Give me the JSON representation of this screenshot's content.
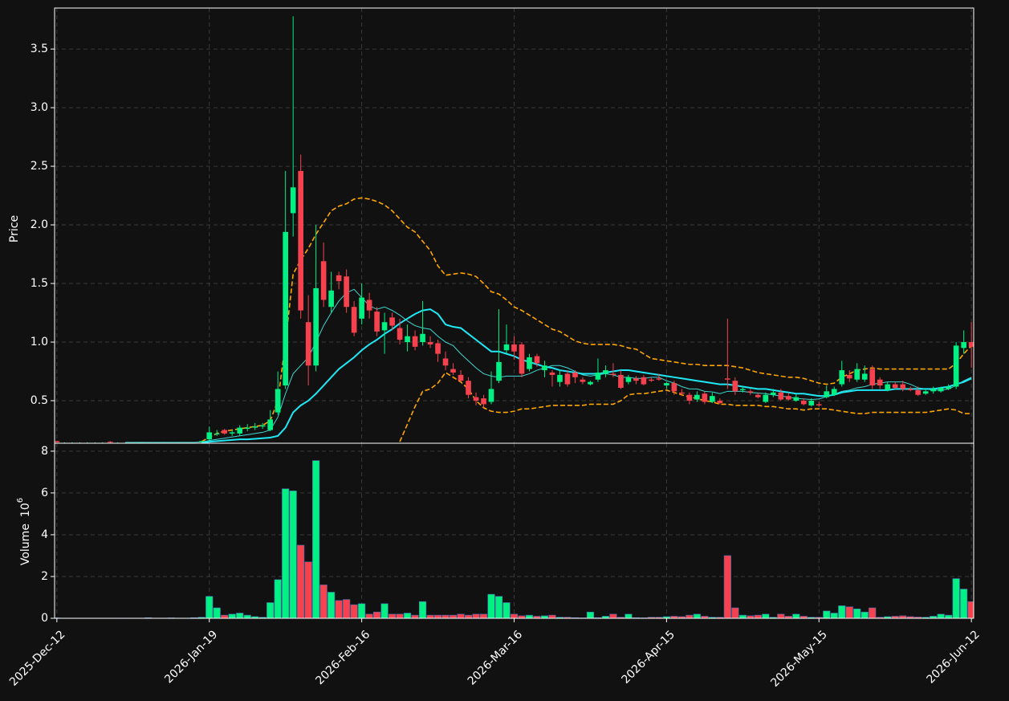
{
  "chart_data": {
    "type": "candlestick",
    "ylabel": "Price",
    "categories": [
      "2025-Dec-12",
      null,
      null,
      null,
      null,
      null,
      null,
      null,
      null,
      null,
      null,
      null,
      null,
      null,
      null,
      null,
      null,
      null,
      null,
      null,
      "2026-Jan-19",
      null,
      null,
      null,
      null,
      null,
      null,
      null,
      null,
      null,
      null,
      null,
      null,
      null,
      null,
      null,
      null,
      null,
      null,
      null,
      "2026-Feb-16",
      null,
      null,
      null,
      null,
      null,
      null,
      null,
      null,
      null,
      null,
      null,
      null,
      null,
      null,
      null,
      null,
      null,
      null,
      null,
      "2026-Mar-16",
      null,
      null,
      null,
      null,
      null,
      null,
      null,
      null,
      null,
      null,
      null,
      null,
      null,
      null,
      null,
      null,
      null,
      null,
      null,
      "2026-Apr-15",
      null,
      null,
      null,
      null,
      null,
      null,
      null,
      null,
      null,
      null,
      null,
      null,
      null,
      null,
      null,
      null,
      null,
      null,
      null,
      "2026-May-15",
      null,
      null,
      null,
      null,
      null,
      null,
      null,
      null,
      null,
      null,
      null,
      null,
      null,
      null,
      null,
      null,
      null,
      null,
      null,
      "2026-Jun-12"
    ],
    "open": [
      0.155,
      0.14,
      0.14,
      0.14,
      0.14,
      0.14,
      0.14,
      0.15,
      0.14,
      0.14,
      0.14,
      0.14,
      0.14,
      0.14,
      0.14,
      0.14,
      0.14,
      0.14,
      0.14,
      0.15,
      0.17,
      0.22,
      0.25,
      0.22,
      0.22,
      0.26,
      0.27,
      0.28,
      0.25,
      0.4,
      0.63,
      2.1,
      2.46,
      1.17,
      0.8,
      1.69,
      1.3,
      1.57,
      1.56,
      1.3,
      1.2,
      1.36,
      1.26,
      1.1,
      1.21,
      1.12,
      1.0,
      1.05,
      1.0,
      1.0,
      0.99,
      0.86,
      0.77,
      0.72,
      0.67,
      0.53,
      0.52,
      0.49,
      0.67,
      0.93,
      0.98,
      0.98,
      0.77,
      0.88,
      0.76,
      0.74,
      0.66,
      0.73,
      0.74,
      0.68,
      0.64,
      0.68,
      0.73,
      0.73,
      0.72,
      0.66,
      0.69,
      0.7,
      0.68,
      0.69,
      0.63,
      0.65,
      0.57,
      0.55,
      0.51,
      0.56,
      0.49,
      0.5,
      0.69,
      0.67,
      0.59,
      0.58,
      0.55,
      0.49,
      0.55,
      0.57,
      0.54,
      0.5,
      0.5,
      0.46,
      0.47,
      0.53,
      0.55,
      0.64,
      0.72,
      0.68,
      0.68,
      0.77,
      0.68,
      0.59,
      0.64,
      0.64,
      0.6,
      0.59,
      0.56,
      0.58,
      0.58,
      0.6,
      0.62,
      0.95,
      1.0
    ],
    "high": [
      0.16,
      0.145,
      0.145,
      0.145,
      0.145,
      0.145,
      0.145,
      0.155,
      0.145,
      0.145,
      0.145,
      0.145,
      0.145,
      0.145,
      0.145,
      0.145,
      0.145,
      0.145,
      0.145,
      0.16,
      0.28,
      0.25,
      0.26,
      0.25,
      0.29,
      0.3,
      0.31,
      0.31,
      0.42,
      0.75,
      2.46,
      3.78,
      2.6,
      1.4,
      2.0,
      1.85,
      1.6,
      1.6,
      1.62,
      1.35,
      1.5,
      1.42,
      1.3,
      1.25,
      1.25,
      1.2,
      1.15,
      1.1,
      1.35,
      1.05,
      1.02,
      0.92,
      0.82,
      0.76,
      0.7,
      0.57,
      0.55,
      0.75,
      1.28,
      1.15,
      1.05,
      1.0,
      0.9,
      0.9,
      0.84,
      0.76,
      0.76,
      0.76,
      0.76,
      0.7,
      0.67,
      0.86,
      0.8,
      0.82,
      0.76,
      0.72,
      0.71,
      0.72,
      0.7,
      0.73,
      0.66,
      0.67,
      0.6,
      0.57,
      0.58,
      0.58,
      0.57,
      0.52,
      1.2,
      0.7,
      0.62,
      0.6,
      0.57,
      0.57,
      0.6,
      0.6,
      0.57,
      0.56,
      0.52,
      0.52,
      0.49,
      0.63,
      0.62,
      0.84,
      0.76,
      0.82,
      0.8,
      0.8,
      0.7,
      0.66,
      0.66,
      0.67,
      0.62,
      0.62,
      0.6,
      0.62,
      0.62,
      0.64,
      1.0,
      1.1,
      1.17
    ],
    "low": [
      0.145,
      0.135,
      0.138,
      0.138,
      0.138,
      0.138,
      0.138,
      0.14,
      0.138,
      0.138,
      0.138,
      0.135,
      0.138,
      0.138,
      0.138,
      0.138,
      0.138,
      0.138,
      0.138,
      0.14,
      0.16,
      0.2,
      0.21,
      0.2,
      0.2,
      0.24,
      0.25,
      0.26,
      0.24,
      0.38,
      0.6,
      1.9,
      1.2,
      0.63,
      0.75,
      1.3,
      1.25,
      1.45,
      1.25,
      1.05,
      1.15,
      1.2,
      1.05,
      0.9,
      1.1,
      0.98,
      0.92,
      0.93,
      0.97,
      0.95,
      0.83,
      0.76,
      0.72,
      0.66,
      0.52,
      0.46,
      0.44,
      0.47,
      0.65,
      0.9,
      0.85,
      0.7,
      0.75,
      0.79,
      0.7,
      0.62,
      0.62,
      0.62,
      0.65,
      0.64,
      0.63,
      0.66,
      0.7,
      0.7,
      0.6,
      0.64,
      0.64,
      0.63,
      0.66,
      0.67,
      0.6,
      0.55,
      0.54,
      0.47,
      0.49,
      0.47,
      0.48,
      0.47,
      0.6,
      0.55,
      0.57,
      0.55,
      0.52,
      0.48,
      0.53,
      0.5,
      0.5,
      0.49,
      0.46,
      0.45,
      0.45,
      0.52,
      0.54,
      0.62,
      0.66,
      0.66,
      0.66,
      0.6,
      0.6,
      0.58,
      0.6,
      0.58,
      0.58,
      0.54,
      0.55,
      0.56,
      0.57,
      0.59,
      0.6,
      0.9,
      0.78
    ],
    "close": [
      0.145,
      0.14,
      0.14,
      0.14,
      0.14,
      0.14,
      0.14,
      0.145,
      0.14,
      0.14,
      0.14,
      0.142,
      0.14,
      0.14,
      0.14,
      0.14,
      0.14,
      0.14,
      0.14,
      0.155,
      0.23,
      0.22,
      0.22,
      0.23,
      0.27,
      0.27,
      0.28,
      0.29,
      0.34,
      0.6,
      1.94,
      2.32,
      1.27,
      0.8,
      1.46,
      1.36,
      1.44,
      1.52,
      1.3,
      1.08,
      1.38,
      1.27,
      1.09,
      1.17,
      1.14,
      1.02,
      1.05,
      0.96,
      1.07,
      0.98,
      0.9,
      0.8,
      0.74,
      0.67,
      0.55,
      0.5,
      0.47,
      0.6,
      0.83,
      0.98,
      0.92,
      0.73,
      0.87,
      0.82,
      0.8,
      0.72,
      0.72,
      0.64,
      0.7,
      0.66,
      0.66,
      0.74,
      0.76,
      0.72,
      0.61,
      0.7,
      0.67,
      0.64,
      0.67,
      0.68,
      0.65,
      0.58,
      0.56,
      0.5,
      0.55,
      0.49,
      0.54,
      0.48,
      0.68,
      0.58,
      0.6,
      0.57,
      0.53,
      0.55,
      0.57,
      0.51,
      0.51,
      0.53,
      0.47,
      0.5,
      0.46,
      0.58,
      0.6,
      0.76,
      0.69,
      0.77,
      0.73,
      0.63,
      0.63,
      0.64,
      0.61,
      0.6,
      0.59,
      0.55,
      0.58,
      0.6,
      0.61,
      0.62,
      0.97,
      1.0,
      0.96
    ],
    "up_color": "#00f084",
    "down_color": "#f5424e",
    "overlays": [
      {
        "style": "thin",
        "color": "#3fd8d2",
        "values": [
          null,
          null,
          null,
          null,
          null,
          null,
          null,
          null,
          null,
          0.145,
          0.145,
          0.145,
          0.145,
          0.145,
          0.145,
          0.145,
          0.145,
          0.145,
          0.145,
          0.148,
          0.16,
          0.17,
          0.18,
          0.19,
          0.2,
          0.21,
          0.22,
          0.23,
          0.25,
          0.36,
          0.56,
          0.73,
          0.8,
          0.87,
          1.0,
          1.14,
          1.25,
          1.35,
          1.42,
          1.45,
          1.38,
          1.31,
          1.28,
          1.3,
          1.27,
          1.23,
          1.18,
          1.14,
          1.12,
          1.11,
          1.05,
          1.0,
          0.97,
          0.9,
          0.84,
          0.78,
          0.73,
          0.71,
          0.7,
          0.71,
          0.71,
          0.71,
          0.73,
          0.76,
          0.78,
          0.8,
          0.8,
          0.78,
          0.75,
          0.72,
          0.71,
          0.72,
          0.73,
          0.72,
          0.7,
          0.7,
          0.69,
          0.69,
          0.7,
          0.7,
          0.67,
          0.65,
          0.62,
          0.6,
          0.6,
          0.58,
          0.575,
          0.56,
          0.58,
          0.58,
          0.58,
          0.57,
          0.565,
          0.56,
          0.55,
          0.54,
          0.53,
          0.52,
          0.515,
          0.51,
          0.515,
          0.535,
          0.555,
          0.58,
          0.59,
          0.61,
          0.62,
          0.64,
          0.65,
          0.66,
          0.66,
          0.66,
          0.64,
          0.61,
          0.6,
          0.59,
          0.59,
          0.6,
          0.63,
          0.67,
          0.7
        ]
      },
      {
        "style": "thick",
        "color": "#1ee8f5",
        "values": [
          null,
          null,
          null,
          null,
          null,
          null,
          null,
          null,
          null,
          null,
          null,
          null,
          null,
          null,
          null,
          null,
          null,
          null,
          null,
          0.14,
          0.15,
          0.155,
          0.16,
          0.165,
          0.17,
          0.17,
          0.175,
          0.18,
          0.185,
          0.2,
          0.27,
          0.4,
          0.46,
          0.5,
          0.56,
          0.63,
          0.7,
          0.77,
          0.82,
          0.87,
          0.93,
          0.98,
          1.02,
          1.07,
          1.11,
          1.16,
          1.2,
          1.24,
          1.27,
          1.28,
          1.24,
          1.15,
          1.13,
          1.12,
          1.07,
          1.02,
          0.97,
          0.92,
          0.92,
          0.9,
          0.88,
          0.85,
          0.83,
          0.81,
          0.79,
          0.78,
          0.76,
          0.75,
          0.74,
          0.73,
          0.73,
          0.73,
          0.74,
          0.75,
          0.76,
          0.76,
          0.75,
          0.74,
          0.73,
          0.72,
          0.71,
          0.7,
          0.69,
          0.68,
          0.67,
          0.66,
          0.65,
          0.64,
          0.64,
          0.63,
          0.62,
          0.61,
          0.6,
          0.6,
          0.59,
          0.58,
          0.57,
          0.56,
          0.56,
          0.55,
          0.54,
          0.54,
          0.55,
          0.57,
          0.58,
          0.59,
          0.59,
          0.59,
          0.59,
          0.59,
          0.6,
          0.6,
          0.6,
          0.6,
          0.6,
          0.6,
          0.61,
          0.62,
          0.64,
          0.66,
          0.69
        ]
      },
      {
        "style": "dashed",
        "color": "#ffa500",
        "values": [
          null,
          null,
          null,
          null,
          null,
          null,
          null,
          null,
          null,
          null,
          null,
          null,
          null,
          null,
          null,
          null,
          null,
          null,
          null,
          0.15,
          0.19,
          0.22,
          0.24,
          0.25,
          0.26,
          0.27,
          0.28,
          0.29,
          0.33,
          0.5,
          1.0,
          1.58,
          1.7,
          1.8,
          1.92,
          2.02,
          2.12,
          2.16,
          2.18,
          2.22,
          2.23,
          2.22,
          2.2,
          2.17,
          2.12,
          2.05,
          1.98,
          1.94,
          1.86,
          1.78,
          1.65,
          1.57,
          1.58,
          1.59,
          1.58,
          1.56,
          1.5,
          1.43,
          1.41,
          1.36,
          1.3,
          1.27,
          1.23,
          1.19,
          1.15,
          1.11,
          1.09,
          1.05,
          1.01,
          0.99,
          0.98,
          0.98,
          0.98,
          0.98,
          0.97,
          0.95,
          0.94,
          0.9,
          0.86,
          0.85,
          0.84,
          0.83,
          0.82,
          0.81,
          0.81,
          0.8,
          0.8,
          0.8,
          0.8,
          0.79,
          0.78,
          0.76,
          0.74,
          0.73,
          0.72,
          0.71,
          0.7,
          0.7,
          0.69,
          0.67,
          0.65,
          0.64,
          0.65,
          0.7,
          0.73,
          0.76,
          0.77,
          0.78,
          0.77,
          0.77,
          0.77,
          0.77,
          0.77,
          0.77,
          0.77,
          0.77,
          0.77,
          0.77,
          0.82,
          0.9,
          0.97
        ]
      },
      {
        "style": "dashed",
        "color": "#ffa500",
        "values": [
          null,
          null,
          null,
          null,
          null,
          null,
          null,
          null,
          null,
          null,
          null,
          null,
          null,
          null,
          null,
          null,
          null,
          null,
          null,
          null,
          null,
          null,
          null,
          null,
          null,
          null,
          null,
          null,
          null,
          null,
          null,
          null,
          null,
          null,
          null,
          null,
          null,
          null,
          null,
          null,
          null,
          null,
          null,
          null,
          null,
          0.15,
          0.3,
          0.45,
          0.58,
          0.6,
          0.65,
          0.74,
          0.7,
          0.66,
          0.6,
          0.5,
          0.44,
          0.41,
          0.4,
          0.4,
          0.41,
          0.43,
          0.43,
          0.44,
          0.45,
          0.46,
          0.46,
          0.46,
          0.46,
          0.46,
          0.47,
          0.47,
          0.47,
          0.47,
          0.5,
          0.55,
          0.56,
          0.56,
          0.57,
          0.58,
          0.59,
          0.57,
          0.55,
          0.53,
          0.52,
          0.5,
          0.49,
          0.47,
          0.47,
          0.46,
          0.46,
          0.46,
          0.46,
          0.45,
          0.45,
          0.44,
          0.43,
          0.43,
          0.42,
          0.43,
          0.43,
          0.43,
          0.42,
          0.41,
          0.4,
          0.39,
          0.39,
          0.4,
          0.4,
          0.4,
          0.4,
          0.4,
          0.4,
          0.4,
          0.4,
          0.41,
          0.42,
          0.43,
          0.42,
          0.39,
          0.39
        ]
      }
    ],
    "ylim": [
      0.137,
      3.85
    ],
    "yticks": [
      0.5,
      {
        "value": 1,
        "label": "1.0"
      },
      1.5,
      {
        "value": 2,
        "label": "2.0"
      },
      2.5,
      {
        "value": 3,
        "label": "3.0"
      },
      3.5
    ],
    "grid": true,
    "volume": {
      "ylabel": "Volume",
      "scale_base": "10",
      "scale_exp": "6",
      "values": [
        0.02,
        0.01,
        0.01,
        0.01,
        0.01,
        0.01,
        0.01,
        0.01,
        0.01,
        0.01,
        0.01,
        0.01,
        0.03,
        0.01,
        0.01,
        0.02,
        0.01,
        0.01,
        0.03,
        0.05,
        1.05,
        0.5,
        0.15,
        0.2,
        0.25,
        0.15,
        0.08,
        0.05,
        0.75,
        1.85,
        6.2,
        6.1,
        3.5,
        2.7,
        7.55,
        1.6,
        1.25,
        0.85,
        0.9,
        0.65,
        0.7,
        0.2,
        0.3,
        0.7,
        0.2,
        0.2,
        0.25,
        0.15,
        0.8,
        0.15,
        0.15,
        0.15,
        0.15,
        0.2,
        0.15,
        0.2,
        0.2,
        1.15,
        1.05,
        0.75,
        0.2,
        0.12,
        0.15,
        0.1,
        0.12,
        0.15,
        0.05,
        0.05,
        0.03,
        0.02,
        0.3,
        0.03,
        0.1,
        0.2,
        0.05,
        0.2,
        0.03,
        0.02,
        0.05,
        0.05,
        0.08,
        0.1,
        0.08,
        0.15,
        0.2,
        0.1,
        0.05,
        0.05,
        3.0,
        0.5,
        0.15,
        0.12,
        0.15,
        0.2,
        0.05,
        0.2,
        0.1,
        0.2,
        0.1,
        0.05,
        0.05,
        0.35,
        0.25,
        0.6,
        0.55,
        0.45,
        0.3,
        0.5,
        0.05,
        0.08,
        0.1,
        0.12,
        0.08,
        0.06,
        0.05,
        0.1,
        0.2,
        0.15,
        1.9,
        1.4,
        0.8
      ],
      "ylim": [
        0,
        8.38
      ],
      "yticks": [
        0,
        2,
        4,
        6,
        8
      ]
    }
  }
}
